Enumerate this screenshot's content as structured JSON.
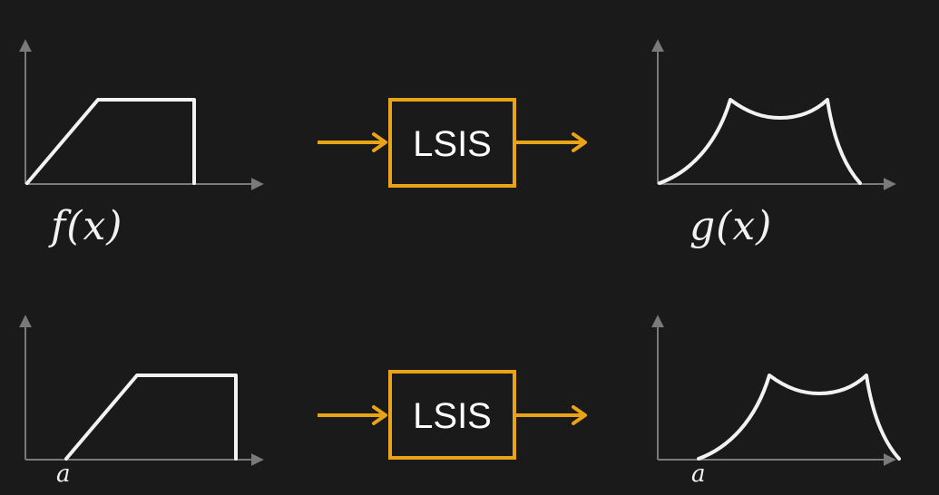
{
  "labels": {
    "input_top": "f(x)",
    "output_top": "g(x)",
    "input_bottom_shift": "a",
    "output_bottom_shift": "a"
  },
  "system": {
    "top_label": "LSIS",
    "bottom_label": "LSIS"
  },
  "colors": {
    "background": "#1a1a1a",
    "curve": "#f2f2f2",
    "axis": "#7a7a7a",
    "system_box": "#e8a317"
  }
}
